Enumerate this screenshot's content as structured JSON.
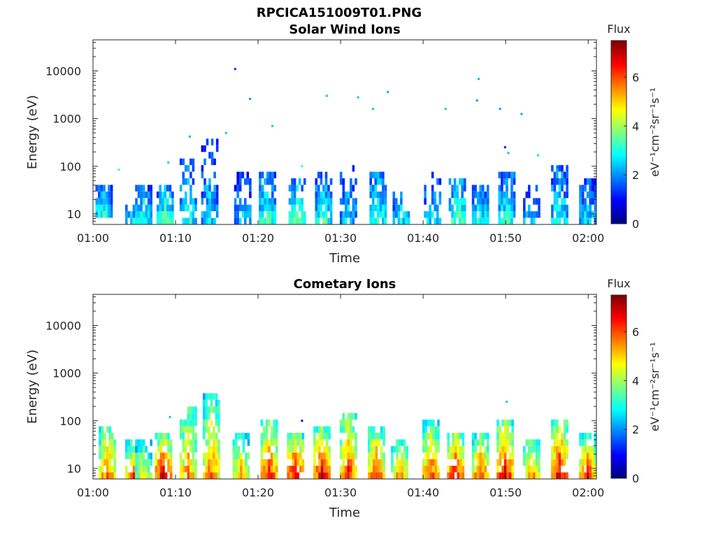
{
  "figure": {
    "filename": "RPCICA151009T01.PNG"
  },
  "chart_data": [
    {
      "type": "heatmap",
      "title": "Solar Wind Ions",
      "xlabel": "Time",
      "ylabel": "Energy (eV)",
      "x_ticks": [
        "01:00",
        "01:10",
        "01:20",
        "01:30",
        "01:40",
        "01:50",
        "02:00"
      ],
      "xlim_minutes": [
        0,
        61
      ],
      "y_scale": "log",
      "ylim": [
        6,
        45000
      ],
      "y_ticks": [
        10,
        100,
        1000,
        10000
      ],
      "y_tick_labels": [
        "10",
        "100",
        "1000",
        "10000"
      ],
      "colorbar": {
        "title": "Flux",
        "label": "eV⁻¹cm⁻²sr⁻¹s⁻¹",
        "range": [
          0,
          7.5
        ],
        "ticks": [
          "0",
          "2",
          "4",
          "6"
        ],
        "colormap": "jet"
      },
      "bursts": [
        {
          "t": 1.2,
          "emin": 10,
          "emax": 30,
          "peak": 3.0,
          "weak": false
        },
        {
          "t": 4.8,
          "emin": 7,
          "emax": 15,
          "peak": 2.5,
          "weak": true
        },
        {
          "t": 6.0,
          "emin": 7,
          "emax": 35,
          "peak": 3.0,
          "weak": false
        },
        {
          "t": 8.6,
          "emin": 7,
          "emax": 35,
          "peak": 3.4,
          "weak": false
        },
        {
          "t": 11.4,
          "emin": 7,
          "emax": 110,
          "peak": 3.0,
          "weak": true
        },
        {
          "t": 14.0,
          "emin": 7,
          "emax": 320,
          "peak": 2.6,
          "weak": true
        },
        {
          "t": 18.0,
          "emin": 7,
          "emax": 60,
          "peak": 2.4,
          "weak": true
        },
        {
          "t": 21.0,
          "emin": 7,
          "emax": 65,
          "peak": 3.2,
          "weak": false
        },
        {
          "t": 24.6,
          "emin": 7,
          "emax": 45,
          "peak": 3.6,
          "weak": false
        },
        {
          "t": 27.8,
          "emin": 7,
          "emax": 65,
          "peak": 3.2,
          "weak": false
        },
        {
          "t": 30.8,
          "emin": 7,
          "emax": 80,
          "peak": 2.6,
          "weak": true
        },
        {
          "t": 34.4,
          "emin": 7,
          "emax": 75,
          "peak": 3.2,
          "weak": false
        },
        {
          "t": 37.2,
          "emin": 7,
          "emax": 35,
          "peak": 2.6,
          "weak": true
        },
        {
          "t": 41.0,
          "emin": 7,
          "emax": 65,
          "peak": 2.6,
          "weak": true
        },
        {
          "t": 44.0,
          "emin": 7,
          "emax": 50,
          "peak": 3.6,
          "weak": false
        },
        {
          "t": 46.8,
          "emin": 7,
          "emax": 40,
          "peak": 3.0,
          "weak": false
        },
        {
          "t": 50.0,
          "emin": 7,
          "emax": 75,
          "peak": 3.0,
          "weak": false
        },
        {
          "t": 53.0,
          "emin": 7,
          "emax": 35,
          "peak": 2.4,
          "weak": true
        },
        {
          "t": 56.4,
          "emin": 7,
          "emax": 90,
          "peak": 3.0,
          "weak": false
        },
        {
          "t": 59.8,
          "emin": 7,
          "emax": 45,
          "peak": 2.6,
          "weak": false
        }
      ],
      "scatter_points": [
        {
          "t": 17.1,
          "e": 11000,
          "v": 1.2
        },
        {
          "t": 18.9,
          "e": 2600,
          "v": 2.0
        },
        {
          "t": 21.6,
          "e": 700,
          "v": 2.4
        },
        {
          "t": 28.2,
          "e": 3000,
          "v": 2.4
        },
        {
          "t": 32.0,
          "e": 2800,
          "v": 2.4
        },
        {
          "t": 33.8,
          "e": 1600,
          "v": 2.4
        },
        {
          "t": 35.6,
          "e": 3600,
          "v": 2.2
        },
        {
          "t": 42.6,
          "e": 1600,
          "v": 2.4
        },
        {
          "t": 46.4,
          "e": 2400,
          "v": 2.0
        },
        {
          "t": 46.6,
          "e": 6800,
          "v": 2.2
        },
        {
          "t": 49.2,
          "e": 1600,
          "v": 2.0
        },
        {
          "t": 51.8,
          "e": 1250,
          "v": 2.2
        },
        {
          "t": 53.8,
          "e": 170,
          "v": 2.6
        },
        {
          "t": 50.2,
          "e": 190,
          "v": 2.4
        },
        {
          "t": 49.8,
          "e": 250,
          "v": 1.0
        },
        {
          "t": 16.0,
          "e": 500,
          "v": 2.4
        },
        {
          "t": 11.6,
          "e": 420,
          "v": 2.2
        },
        {
          "t": 9.0,
          "e": 120,
          "v": 2.4
        },
        {
          "t": 3.0,
          "e": 85,
          "v": 3.0
        },
        {
          "t": 25.2,
          "e": 100,
          "v": 3.0
        },
        {
          "t": 56.2,
          "e": 95,
          "v": 1.6
        }
      ]
    },
    {
      "type": "heatmap",
      "title": "Cometary Ions",
      "xlabel": "Time",
      "ylabel": "Energy (eV)",
      "x_ticks": [
        "01:00",
        "01:10",
        "01:20",
        "01:30",
        "01:40",
        "01:50",
        "02:00"
      ],
      "xlim_minutes": [
        0,
        61
      ],
      "y_scale": "log",
      "ylim": [
        6,
        45000
      ],
      "y_ticks": [
        10,
        100,
        1000,
        10000
      ],
      "y_tick_labels": [
        "10",
        "100",
        "1000",
        "10000"
      ],
      "colorbar": {
        "title": "Flux",
        "label": "eV⁻¹cm⁻²sr⁻¹s⁻¹",
        "range": [
          0,
          7.5
        ],
        "ticks": [
          "0",
          "2",
          "4",
          "6"
        ],
        "colormap": "jet"
      },
      "bursts": [
        {
          "t": 1.6,
          "emin": 7,
          "emax": 75,
          "peak": 5.8,
          "weak": false
        },
        {
          "t": 4.8,
          "emin": 7,
          "emax": 30,
          "peak": 5.8,
          "weak": false
        },
        {
          "t": 6.0,
          "emin": 7,
          "emax": 40,
          "peak": 4.6,
          "weak": false
        },
        {
          "t": 8.4,
          "emin": 7,
          "emax": 45,
          "peak": 6.8,
          "weak": false
        },
        {
          "t": 11.4,
          "emin": 7,
          "emax": 170,
          "peak": 5.6,
          "weak": false
        },
        {
          "t": 14.2,
          "emin": 7,
          "emax": 320,
          "peak": 5.8,
          "weak": false
        },
        {
          "t": 17.8,
          "emin": 7,
          "emax": 45,
          "peak": 5.2,
          "weak": false
        },
        {
          "t": 21.2,
          "emin": 7,
          "emax": 80,
          "peak": 6.4,
          "weak": false
        },
        {
          "t": 24.4,
          "emin": 7,
          "emax": 45,
          "peak": 6.8,
          "weak": false
        },
        {
          "t": 27.6,
          "emin": 7,
          "emax": 60,
          "peak": 6.6,
          "weak": false
        },
        {
          "t": 30.8,
          "emin": 7,
          "emax": 130,
          "peak": 6.4,
          "weak": false
        },
        {
          "t": 34.2,
          "emin": 7,
          "emax": 70,
          "peak": 6.2,
          "weak": false
        },
        {
          "t": 37.0,
          "emin": 7,
          "emax": 40,
          "peak": 5.4,
          "weak": false
        },
        {
          "t": 40.8,
          "emin": 7,
          "emax": 80,
          "peak": 6.2,
          "weak": false
        },
        {
          "t": 43.8,
          "emin": 7,
          "emax": 55,
          "peak": 6.6,
          "weak": false
        },
        {
          "t": 46.8,
          "emin": 7,
          "emax": 45,
          "peak": 6.0,
          "weak": false
        },
        {
          "t": 49.8,
          "emin": 7,
          "emax": 90,
          "peak": 6.8,
          "weak": false
        },
        {
          "t": 53.0,
          "emin": 7,
          "emax": 40,
          "peak": 5.4,
          "weak": false
        },
        {
          "t": 56.4,
          "emin": 7,
          "emax": 90,
          "peak": 6.8,
          "weak": false
        },
        {
          "t": 59.8,
          "emin": 7,
          "emax": 45,
          "peak": 6.4,
          "weak": false
        }
      ],
      "scatter_points": [
        {
          "t": 9.2,
          "e": 120,
          "v": 2.4
        },
        {
          "t": 25.2,
          "e": 100,
          "v": 0.8
        },
        {
          "t": 50.0,
          "e": 250,
          "v": 2.4
        }
      ]
    }
  ]
}
